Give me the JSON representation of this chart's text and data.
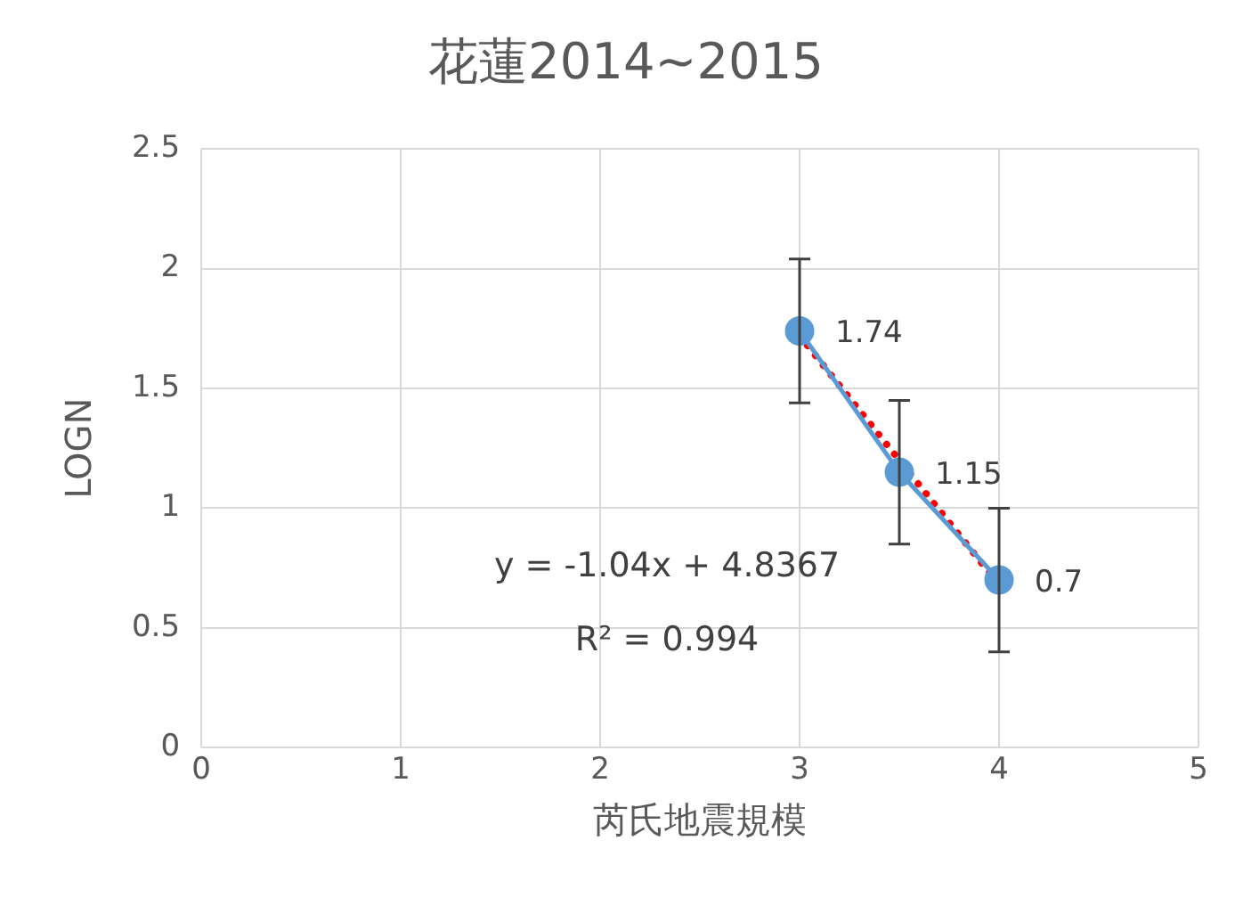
{
  "chart_data": {
    "type": "line",
    "title": "花蓮2014~2015",
    "xlabel": "芮氏地震規模",
    "ylabel": "LOGN",
    "series": [
      {
        "x": [
          3,
          3.5,
          4
        ],
        "values": [
          1.74,
          1.15,
          0.7
        ],
        "color": "#5b9bd5",
        "marker": "circle",
        "errors": [
          0.3,
          0.3,
          0.3
        ],
        "value_labels": [
          "1.74",
          "1.15",
          "0.7"
        ]
      },
      {
        "x": [
          3,
          4
        ],
        "values": [
          1.72,
          0.68
        ],
        "color": "#ff0000",
        "line_style": "dotted"
      }
    ],
    "annotations": [
      "y = -1.04x + 4.8367",
      "R² = 0.994"
    ],
    "xlim": [
      0,
      5
    ],
    "xticks": [
      0,
      1,
      2,
      3,
      4,
      5
    ],
    "ylim": [
      0,
      2.5
    ],
    "yticks": [
      0,
      0.5,
      1,
      1.5,
      2,
      2.5
    ],
    "grid": true,
    "legend": false
  }
}
